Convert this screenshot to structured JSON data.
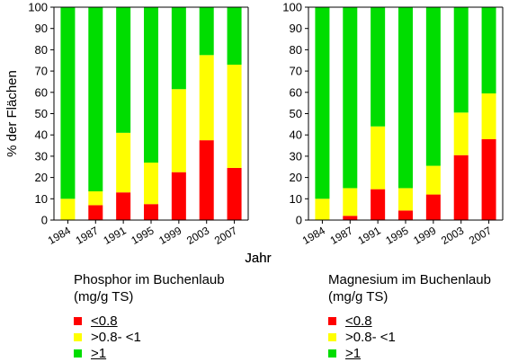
{
  "chart_data": [
    {
      "type": "bar",
      "stacked": true,
      "categories": [
        "1984",
        "1987",
        "1991",
        "1995",
        "1999",
        "2003",
        "2007"
      ],
      "ylabel": "% der Flächen",
      "xlabel": "Jahr",
      "ylim": [
        0,
        100
      ],
      "yticks": [
        0,
        10,
        20,
        30,
        40,
        50,
        60,
        70,
        80,
        90,
        100
      ],
      "legend_title_1": "Phosphor im Buchenlaub",
      "legend_title_2": "(mg/g TS)",
      "series": [
        {
          "name": "<0.8",
          "color": "#ff0000",
          "values": [
            0,
            7,
            13,
            7.5,
            22.5,
            37.5,
            24.5
          ]
        },
        {
          "name": ">0.8- <1",
          "color": "#ffff00",
          "values": [
            10,
            6.5,
            28,
            19.5,
            39,
            40,
            48.5
          ]
        },
        {
          "name": ">1",
          "color": "#00dd00",
          "values": [
            90,
            86.5,
            59,
            73,
            38.5,
            22.5,
            27
          ]
        }
      ]
    },
    {
      "type": "bar",
      "stacked": true,
      "categories": [
        "1984",
        "1987",
        "1991",
        "1995",
        "1999",
        "2003",
        "2007"
      ],
      "xlabel": "Jahr",
      "ylim": [
        0,
        100
      ],
      "yticks": [
        0,
        10,
        20,
        30,
        40,
        50,
        60,
        70,
        80,
        90,
        100
      ],
      "legend_title_1": "Magnesium im Buchenlaub",
      "legend_title_2": "(mg/g TS)",
      "series": [
        {
          "name": "<0.8",
          "color": "#ff0000",
          "values": [
            0,
            2,
            14.5,
            4.5,
            12,
            30.5,
            38
          ]
        },
        {
          "name": ">0.8- <1",
          "color": "#ffff00",
          "values": [
            10,
            13,
            29.5,
            10.5,
            13.5,
            20,
            21.5
          ]
        },
        {
          "name": ">1",
          "color": "#00dd00",
          "values": [
            90,
            85,
            56,
            85,
            74.5,
            49.5,
            40.5
          ]
        }
      ]
    }
  ]
}
